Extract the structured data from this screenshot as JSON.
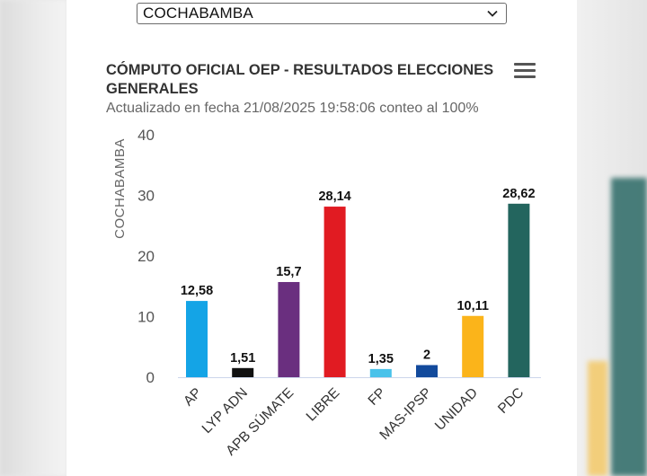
{
  "region_select": {
    "selected": "COCHABAMBA"
  },
  "menu": {
    "icon": "hamburger-menu-icon"
  },
  "chart_data": {
    "type": "bar",
    "title": "CÓMPUTO OFICIAL OEP - RESULTADOS ELECCIONES GENERALES",
    "subtitle": "Actualizado en fecha 21/08/2025 19:58:06 conteo al 100%",
    "ylabel": "COCHABAMBA",
    "xlabel": "",
    "ylim": [
      0,
      40
    ],
    "yticks": [
      0,
      10,
      20,
      30,
      40
    ],
    "categories": [
      "AP",
      "LYP ADN",
      "APB SÚMATE",
      "LIBRE",
      "FP",
      "MAS-IPSP",
      "UNIDAD",
      "PDC"
    ],
    "values": [
      12.58,
      1.51,
      15.7,
      28.14,
      1.35,
      2,
      10.11,
      28.62
    ],
    "value_labels": [
      "12,58",
      "1,51",
      "15,7",
      "28,14",
      "1,35",
      "2",
      "10,11",
      "28,62"
    ],
    "colors": [
      "#14a4e6",
      "#111111",
      "#6a2f7f",
      "#e11b22",
      "#49c2ea",
      "#124a9c",
      "#fbb41a",
      "#23655e"
    ],
    "grid": false,
    "legend": "none"
  }
}
